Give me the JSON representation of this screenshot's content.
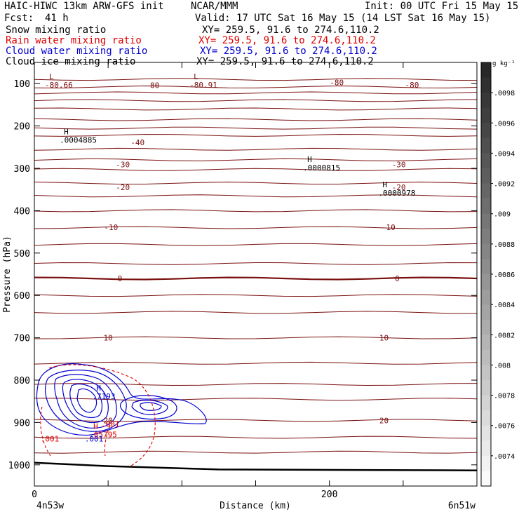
{
  "header": {
    "model": "HAIC-HIWC 13km ARW-GFS init",
    "org": "NCAR/MMM",
    "init": "Init: 00 UTC Fri 15 May 15",
    "fcst_label": "Fcst:",
    "fcst_value": "41 h",
    "valid": "Valid: 17 UTC Sat 16 May 15 (14 LST Sat 16 May 15)"
  },
  "fields": [
    {
      "name": "Snow mixing ratio",
      "xy": "XY= 259.5, 91.6 to 274.6,110.2",
      "color": "#000000"
    },
    {
      "name": "Rain water mixing ratio",
      "xy": "XY= 259.5, 91.6 to 274.6,110.2",
      "color": "#e00000"
    },
    {
      "name": "Cloud water mixing ratio",
      "xy": "XY= 259.5, 91.6 to 274.6,110.2",
      "color": "#0000d0"
    },
    {
      "name": "Cloud ice mixing ratio",
      "xy": "XY= 259.5, 91.6 to 274.6,110.2",
      "color": "#000000"
    }
  ],
  "chart_data": {
    "type": "contour",
    "xlabel": "Distance (km)",
    "ylabel": "Pressure (hPa)",
    "xlim": [
      0,
      300
    ],
    "ylim": [
      1050,
      50
    ],
    "x_ticks": [
      0,
      200
    ],
    "y_ticks": [
      100,
      200,
      300,
      400,
      500,
      600,
      700,
      800,
      900,
      1000
    ],
    "x_end_labels": {
      "left": "4n53w",
      "right": "6n51w"
    },
    "colorbar": {
      "unit": "g kg⁻¹",
      "ticks": [
        ".0098",
        ".0096",
        ".0094",
        ".0092",
        ".009",
        ".0088",
        ".0086",
        ".0084",
        ".0082",
        ".008",
        ".0078",
        ".0076",
        ".0074"
      ],
      "tick_values": [
        0.0098,
        0.0096,
        0.0094,
        0.0092,
        0.009,
        0.0088,
        0.0086,
        0.0084,
        0.0082,
        0.008,
        0.0078,
        0.0076,
        0.0074
      ],
      "range": [
        0.0072,
        0.01
      ]
    },
    "isotherm_labels": [
      {
        "text": "-80",
        "x": 80,
        "p": 104
      },
      {
        "text": "-80",
        "x": 205,
        "p": 97
      },
      {
        "text": "-80",
        "x": 256,
        "p": 103
      },
      {
        "text": "-40",
        "x": 70,
        "p": 239
      },
      {
        "text": "-30",
        "x": 60,
        "p": 291
      },
      {
        "text": "-30",
        "x": 247,
        "p": 291
      },
      {
        "text": "-20",
        "x": 60,
        "p": 345
      },
      {
        "text": "-20",
        "x": 247,
        "p": 345
      },
      {
        "text": "-10",
        "x": 52,
        "p": 439
      },
      {
        "text": "-10",
        "x": 240,
        "p": 439
      },
      {
        "text": "0",
        "x": 58,
        "p": 560
      },
      {
        "text": "0",
        "x": 246,
        "p": 560
      },
      {
        "text": "10",
        "x": 50,
        "p": 700
      },
      {
        "text": "10",
        "x": 237,
        "p": 700
      },
      {
        "text": "20",
        "x": 50,
        "p": 895
      },
      {
        "text": "20",
        "x": 237,
        "p": 895
      }
    ],
    "extrema": [
      {
        "type": "L",
        "value": "-80.66",
        "x": 10,
        "p": 100
      },
      {
        "type": "L",
        "value": "-80.91",
        "x": 108,
        "p": 100
      },
      {
        "type": "H",
        "value": ".0004885",
        "x": 20,
        "p": 230
      },
      {
        "type": "H",
        "value": ".0000815",
        "x": 185,
        "p": 295
      },
      {
        "type": "H",
        "value": ".0000978",
        "x": 236,
        "p": 355
      },
      {
        "type": "H",
        "value": ".7193",
        "x": 42,
        "p": 835
      },
      {
        "type": "H",
        "value": ".05795",
        "x": 40,
        "p": 925
      },
      {
        "type": "min",
        "value": ".001",
        "x": 7,
        "p": 935
      },
      {
        "type": "min",
        "value": ".001",
        "x": 37,
        "p": 935
      },
      {
        "type": "min",
        "value": ".001",
        "x": 48,
        "p": 900
      }
    ],
    "isotherm_levels_hpa": [
      90,
      108,
      122,
      140,
      160,
      185,
      205,
      222,
      255,
      280,
      303,
      335,
      365,
      400,
      440,
      480,
      525,
      560,
      600,
      640,
      700,
      760,
      810,
      845,
      895,
      935,
      970
    ],
    "terrain_hpa": [
      [
        0,
        995
      ],
      [
        50,
        1003
      ],
      [
        125,
        1011
      ],
      [
        300,
        1013
      ]
    ]
  }
}
